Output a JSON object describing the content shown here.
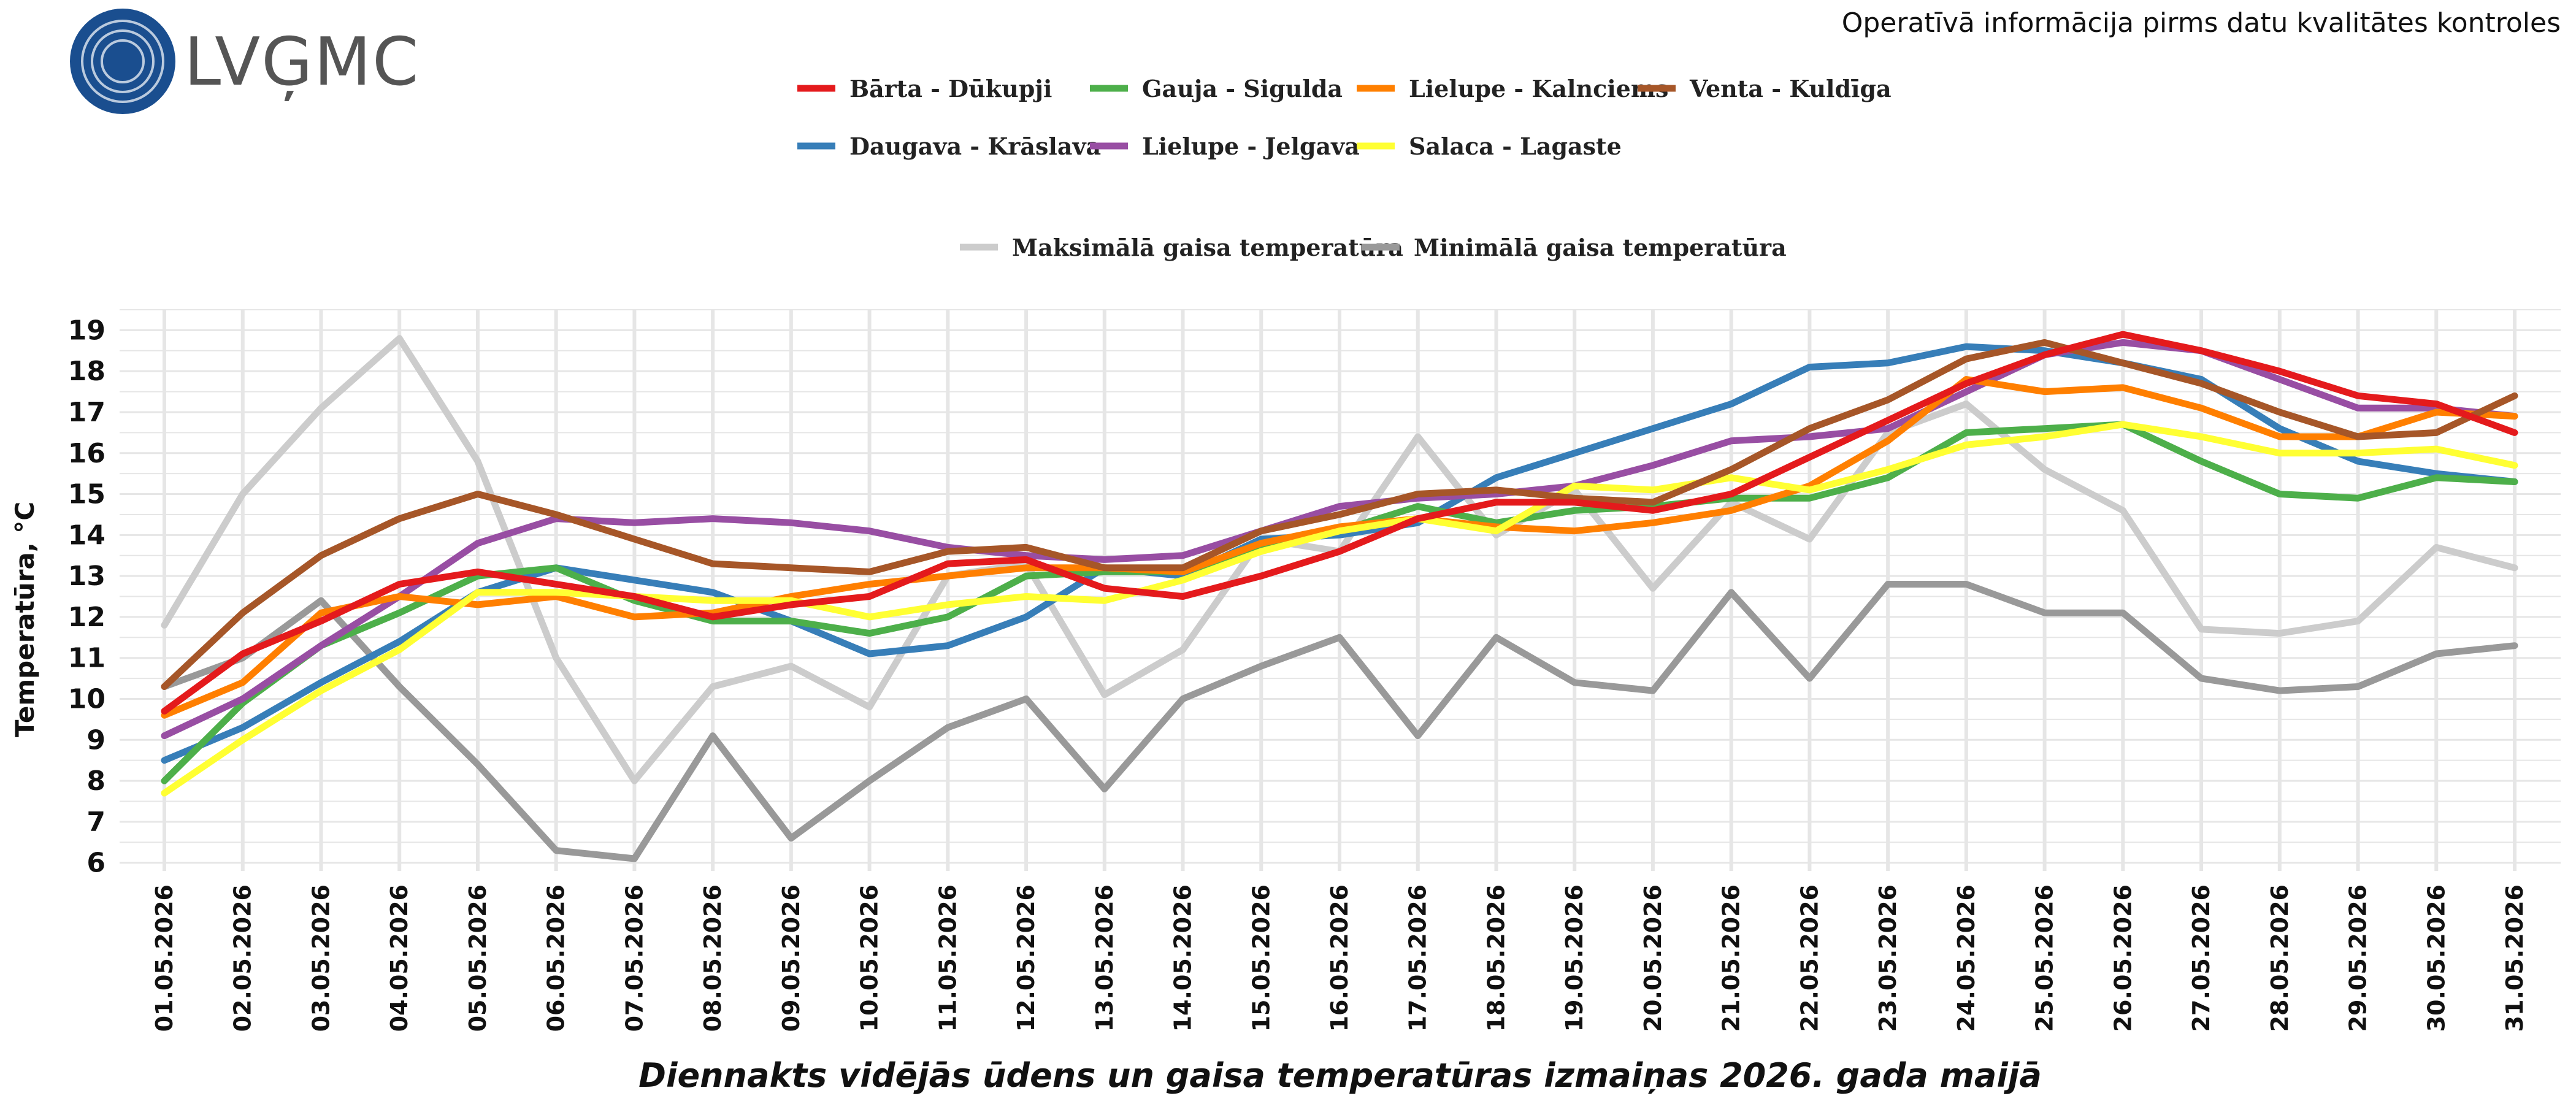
{
  "header": {
    "logo_text": "LVĢMC",
    "subtitle": "Operatīvā informācija pirms datu kvalitātes kontroles"
  },
  "colors": {
    "logo_circle": "#1a4e8f",
    "grid": "#e6e6e6",
    "background": "#ffffff"
  },
  "chart_data": {
    "type": "line",
    "title": "Diennakts vidējās ūdens un gaisa temperatūras izmaiņas 2026. gada maijā",
    "xlabel": "",
    "ylabel": "Temperatūra, °C",
    "ylim": [
      5.8,
      19.5
    ],
    "yticks": [
      6,
      7,
      8,
      9,
      10,
      11,
      12,
      13,
      14,
      15,
      16,
      17,
      18,
      19
    ],
    "grid": true,
    "legend_position": "top-center",
    "categories": [
      "01.05.2026",
      "02.05.2026",
      "03.05.2026",
      "04.05.2026",
      "05.05.2026",
      "06.05.2026",
      "07.05.2026",
      "08.05.2026",
      "09.05.2026",
      "10.05.2026",
      "11.05.2026",
      "12.05.2026",
      "13.05.2026",
      "14.05.2026",
      "15.05.2026",
      "16.05.2026",
      "17.05.2026",
      "18.05.2026",
      "19.05.2026",
      "20.05.2026",
      "21.05.2026",
      "22.05.2026",
      "23.05.2026",
      "24.05.2026",
      "25.05.2026",
      "26.05.2026",
      "27.05.2026",
      "28.05.2026",
      "29.05.2026",
      "30.05.2026",
      "31.05.2026"
    ],
    "series": [
      {
        "name": "Maksimālā gaisa temperatūra",
        "color": "#cccccc",
        "values": [
          11.8,
          15.0,
          17.1,
          18.8,
          15.8,
          11.0,
          8.0,
          10.3,
          10.8,
          9.8,
          13.0,
          13.3,
          10.1,
          11.2,
          13.9,
          13.6,
          16.4,
          14.0,
          15.1,
          12.7,
          14.8,
          13.9,
          16.5,
          17.2,
          15.6,
          14.6,
          11.7,
          11.6,
          11.9,
          13.7,
          13.2
        ]
      },
      {
        "name": "Minimālā gaisa temperatūra",
        "color": "#999999",
        "values": [
          10.3,
          11.0,
          12.4,
          10.3,
          8.4,
          6.3,
          6.1,
          9.1,
          6.6,
          8.0,
          9.3,
          10.0,
          7.8,
          10.0,
          10.8,
          11.5,
          9.1,
          11.5,
          10.4,
          10.2,
          12.6,
          10.5,
          12.8,
          12.8,
          12.1,
          12.1,
          10.5,
          10.2,
          10.3,
          11.1,
          11.3
        ]
      },
      {
        "name": "Daugava - Krāslava",
        "color": "#377eb8",
        "values": [
          8.5,
          9.3,
          10.4,
          11.4,
          12.6,
          13.2,
          12.9,
          12.6,
          11.9,
          11.1,
          11.3,
          12.0,
          13.2,
          13.0,
          13.9,
          14.0,
          14.3,
          15.4,
          16.0,
          16.6,
          17.2,
          18.1,
          18.2,
          18.6,
          18.5,
          18.2,
          17.8,
          16.6,
          15.8,
          15.5,
          15.3
        ]
      },
      {
        "name": "Gauja - Sigulda",
        "color": "#4daf4a",
        "values": [
          8.0,
          9.9,
          11.3,
          12.1,
          13.0,
          13.2,
          12.4,
          11.9,
          11.9,
          11.6,
          12.0,
          13.0,
          13.1,
          13.1,
          13.7,
          14.1,
          14.7,
          14.3,
          14.6,
          14.7,
          14.9,
          14.9,
          15.4,
          16.5,
          16.6,
          16.7,
          15.8,
          15.0,
          14.9,
          15.4,
          15.3
        ]
      },
      {
        "name": "Lielupe - Jelgava",
        "color": "#984ea3",
        "values": [
          9.1,
          10.0,
          11.3,
          12.5,
          13.8,
          14.4,
          14.3,
          14.4,
          14.3,
          14.1,
          13.7,
          13.5,
          13.4,
          13.5,
          14.1,
          14.7,
          14.9,
          15.0,
          15.2,
          15.7,
          16.3,
          16.4,
          16.6,
          17.5,
          18.4,
          18.7,
          18.5,
          17.8,
          17.1,
          17.1,
          16.9
        ]
      },
      {
        "name": "Lielupe - Kalnciems",
        "color": "#ff7f00",
        "values": [
          9.6,
          10.4,
          12.1,
          12.5,
          12.3,
          12.5,
          12.0,
          12.1,
          12.5,
          12.8,
          13.0,
          13.2,
          13.2,
          13.1,
          13.8,
          14.2,
          14.4,
          14.2,
          14.1,
          14.3,
          14.6,
          15.2,
          16.3,
          17.8,
          17.5,
          17.6,
          17.1,
          16.4,
          16.4,
          17.0,
          16.9
        ]
      },
      {
        "name": "Salaca - Lagaste",
        "color": "#ffff33",
        "values": [
          7.7,
          9.0,
          10.2,
          11.2,
          12.6,
          12.6,
          12.5,
          12.4,
          12.4,
          12.0,
          12.3,
          12.5,
          12.4,
          12.9,
          13.6,
          14.1,
          14.4,
          14.1,
          15.2,
          15.1,
          15.4,
          15.1,
          15.6,
          16.2,
          16.4,
          16.7,
          16.4,
          16.0,
          16.0,
          16.1,
          15.7
        ]
      },
      {
        "name": "Venta - Kuldīga",
        "color": "#a65628",
        "values": [
          10.3,
          12.1,
          13.5,
          14.4,
          15.0,
          14.5,
          13.9,
          13.3,
          13.2,
          13.1,
          13.6,
          13.7,
          13.2,
          13.2,
          14.1,
          14.5,
          15.0,
          15.1,
          14.9,
          14.8,
          15.6,
          16.6,
          17.3,
          18.3,
          18.7,
          18.2,
          17.7,
          17.0,
          16.4,
          16.5,
          17.4
        ]
      },
      {
        "name": "Bārta - Dūkupji",
        "color": "#e41a1c",
        "values": [
          9.7,
          11.1,
          11.9,
          12.8,
          13.1,
          12.8,
          12.5,
          12.0,
          12.3,
          12.5,
          13.3,
          13.4,
          12.7,
          12.5,
          13.0,
          13.6,
          14.4,
          14.8,
          14.8,
          14.6,
          15.0,
          15.9,
          16.8,
          17.7,
          18.4,
          18.9,
          18.5,
          18.0,
          17.4,
          17.2,
          16.5
        ]
      }
    ],
    "legend_rows": [
      [
        "Bārta - Dūkupji",
        "Gauja - Sigulda",
        "Lielupe - Kalnciems",
        "Venta - Kuldīga"
      ],
      [
        "Daugava - Krāslava",
        "Lielupe - Jelgava",
        "Salaca - Lagaste"
      ],
      [
        "Maksimālā gaisa temperatūra",
        "Minimālā gaisa temperatūra"
      ]
    ]
  }
}
